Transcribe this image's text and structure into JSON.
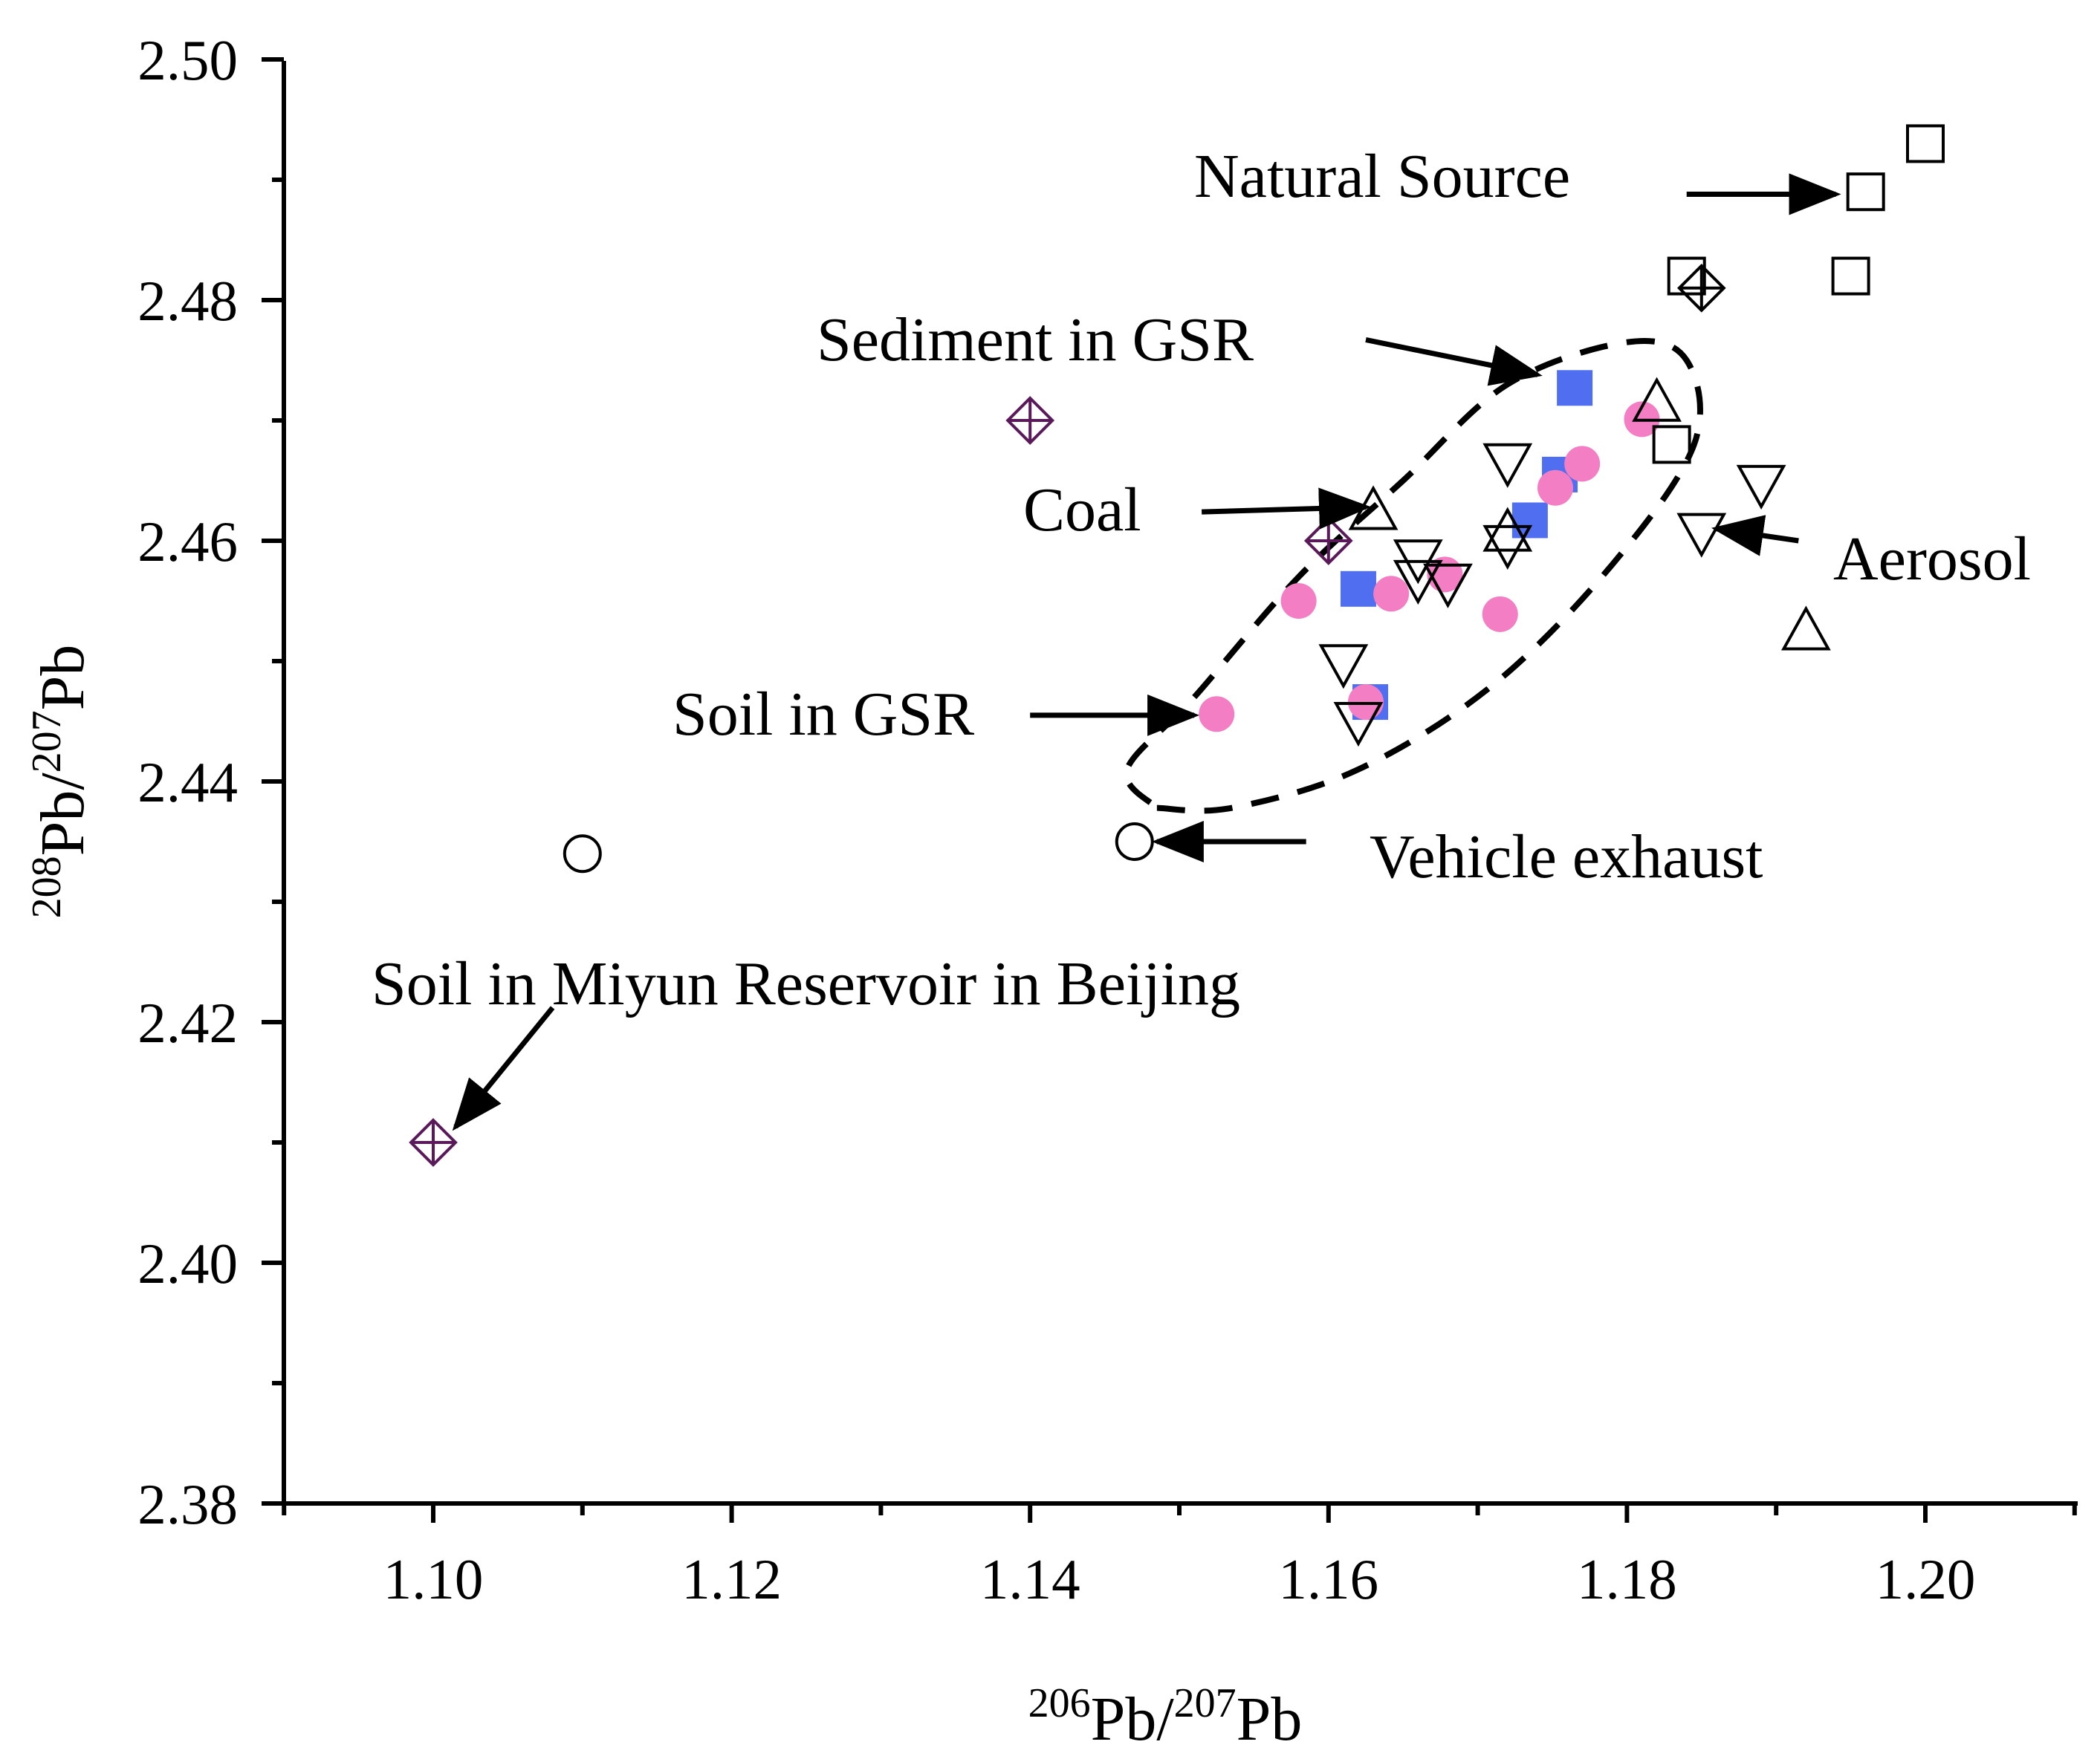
{
  "chart_data": {
    "type": "scatter",
    "title": "",
    "xlabel": {
      "iso1": "206",
      "el1": "Pb/",
      "iso2": "207",
      "el2": "Pb"
    },
    "ylabel": {
      "iso1": "208",
      "el1": "Pb/",
      "iso2": "207",
      "el2": "Pb"
    },
    "xlim": [
      1.09,
      1.21
    ],
    "ylim": [
      2.38,
      2.5
    ],
    "xticks": [
      {
        "value": 1.1,
        "label": "1.10"
      },
      {
        "value": 1.12,
        "label": "1.12"
      },
      {
        "value": 1.14,
        "label": "1.14"
      },
      {
        "value": 1.16,
        "label": "1.16"
      },
      {
        "value": 1.18,
        "label": "1.18"
      },
      {
        "value": 1.2,
        "label": "1.20"
      }
    ],
    "yticks": [
      {
        "value": 2.38,
        "label": "2.38"
      },
      {
        "value": 2.4,
        "label": "2.40"
      },
      {
        "value": 2.42,
        "label": "2.42"
      },
      {
        "value": 2.44,
        "label": "2.44"
      },
      {
        "value": 2.46,
        "label": "2.46"
      },
      {
        "value": 2.48,
        "label": "2.48"
      },
      {
        "value": 2.5,
        "label": "2.50"
      }
    ],
    "x_minor_step": 0.01,
    "y_minor_step": 0.01,
    "grid": false,
    "legend": "none",
    "colors": {
      "sediment": "#4f6ff0",
      "soil": "#f47ec4",
      "miyun": "#5a1a5a",
      "axis": "#000000"
    },
    "series": [
      {
        "name": "Sediment in GSR",
        "marker": "filled-square",
        "points": [
          {
            "x": 1.1765,
            "y": 2.4727
          },
          {
            "x": 1.1755,
            "y": 2.4655
          },
          {
            "x": 1.1735,
            "y": 2.4617
          },
          {
            "x": 1.162,
            "y": 2.456
          },
          {
            "x": 1.1628,
            "y": 2.4466
          }
        ]
      },
      {
        "name": "Soil in GSR",
        "marker": "filled-circle",
        "points": [
          {
            "x": 1.1525,
            "y": 2.4456
          },
          {
            "x": 1.158,
            "y": 2.455
          },
          {
            "x": 1.1642,
            "y": 2.4556
          },
          {
            "x": 1.1678,
            "y": 2.4572
          },
          {
            "x": 1.1715,
            "y": 2.4539
          },
          {
            "x": 1.1752,
            "y": 2.4644
          },
          {
            "x": 1.177,
            "y": 2.4664
          },
          {
            "x": 1.181,
            "y": 2.4701
          },
          {
            "x": 1.1625,
            "y": 2.4466
          }
        ]
      },
      {
        "name": "Natural Source",
        "marker": "open-square",
        "points": [
          {
            "x": 1.2,
            "y": 2.493
          },
          {
            "x": 1.196,
            "y": 2.489
          },
          {
            "x": 1.195,
            "y": 2.482
          },
          {
            "x": 1.184,
            "y": 2.482
          },
          {
            "x": 1.183,
            "y": 2.468
          }
        ]
      },
      {
        "name": "Coal",
        "marker": "open-triangle-up",
        "points": [
          {
            "x": 1.163,
            "y": 2.4625
          },
          {
            "x": 1.172,
            "y": 2.4607
          },
          {
            "x": 1.182,
            "y": 2.4715
          },
          {
            "x": 1.192,
            "y": 2.4525
          }
        ]
      },
      {
        "name": "Aerosol",
        "marker": "open-triangle-down",
        "points": [
          {
            "x": 1.172,
            "y": 2.4665
          },
          {
            "x": 1.172,
            "y": 2.4597
          },
          {
            "x": 1.166,
            "y": 2.4585
          },
          {
            "x": 1.166,
            "y": 2.4568
          },
          {
            "x": 1.168,
            "y": 2.4565
          },
          {
            "x": 1.161,
            "y": 2.4498
          },
          {
            "x": 1.162,
            "y": 2.445
          },
          {
            "x": 1.185,
            "y": 2.4607
          },
          {
            "x": 1.189,
            "y": 2.4647
          }
        ]
      },
      {
        "name": "Vehicle exhaust",
        "marker": "open-circle",
        "points": [
          {
            "x": 1.11,
            "y": 2.434
          },
          {
            "x": 1.147,
            "y": 2.435
          }
        ]
      },
      {
        "name": "Soil in Miyun Reservoir in Beijing",
        "marker": "crossed-diamond",
        "points": [
          {
            "x": 1.1,
            "y": 2.41
          },
          {
            "x": 1.14,
            "y": 2.47
          },
          {
            "x": 1.16,
            "y": 2.46
          }
        ]
      },
      {
        "name": "Natural Source (diamond)",
        "marker": "crossed-diamond-black",
        "points": [
          {
            "x": 1.185,
            "y": 2.481
          }
        ]
      }
    ],
    "boundary": {
      "style": "dashed",
      "points": [
        {
          "x": 1.1485,
          "y": 2.4378
        },
        {
          "x": 1.1535,
          "y": 2.4378
        },
        {
          "x": 1.162,
          "y": 2.441
        },
        {
          "x": 1.171,
          "y": 2.448
        },
        {
          "x": 1.179,
          "y": 2.458
        },
        {
          "x": 1.1845,
          "y": 2.468
        },
        {
          "x": 1.184,
          "y": 2.475
        },
        {
          "x": 1.18,
          "y": 2.4765
        },
        {
          "x": 1.172,
          "y": 2.473
        },
        {
          "x": 1.165,
          "y": 2.465
        },
        {
          "x": 1.158,
          "y": 2.457
        },
        {
          "x": 1.151,
          "y": 2.447
        },
        {
          "x": 1.1465,
          "y": 2.441
        },
        {
          "x": 1.1485,
          "y": 2.4378
        }
      ]
    },
    "annotations": [
      {
        "text": "Natural Source",
        "tail": {
          "x": 1.184,
          "y": 2.4888
        },
        "head": {
          "x": 1.194,
          "y": 2.4888
        }
      },
      {
        "text": "Sediment in GSR",
        "tail": {
          "x": 1.1625,
          "y": 2.4767
        },
        "head": {
          "x": 1.174,
          "y": 2.4738
        }
      },
      {
        "text": "Coal",
        "tail": {
          "x": 1.1515,
          "y": 2.4624
        },
        "head": {
          "x": 1.1625,
          "y": 2.4628
        }
      },
      {
        "text": "Aerosol",
        "tail": {
          "x": 1.1915,
          "y": 2.46
        },
        "head": {
          "x": 1.186,
          "y": 2.461
        }
      },
      {
        "text": "Soil in GSR",
        "tail": {
          "x": 1.14,
          "y": 2.4455
        },
        "head": {
          "x": 1.151,
          "y": 2.4455
        }
      },
      {
        "text": "Vehicle exhaust",
        "tail": {
          "x": 1.1585,
          "y": 2.435
        },
        "head": {
          "x": 1.1485,
          "y": 2.435
        }
      },
      {
        "text": "Soil in Miyun Reservoir in Beijing",
        "tail": {
          "x": 1.108,
          "y": 2.4212
        },
        "head": {
          "x": 1.1015,
          "y": 2.4113
        }
      }
    ]
  }
}
